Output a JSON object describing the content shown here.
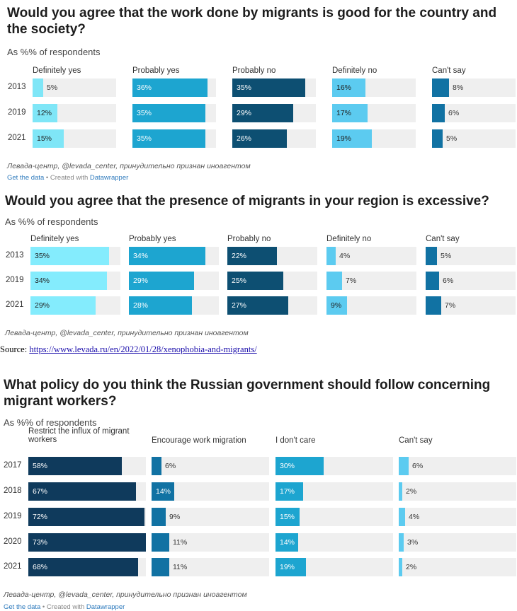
{
  "source": {
    "label": "Source:",
    "url": "https://www.levada.ru/en/2022/01/28/xenophobia-and-migrants/"
  },
  "chart_data": [
    {
      "type": "bar",
      "title": "Would you agree that the work done by migrants is good for the country and the society?",
      "subtitle": "As %% of respondents",
      "categories": [
        "2013",
        "2019",
        "2021"
      ],
      "series": [
        {
          "name": "Definitely yes",
          "values": [
            5,
            12,
            15
          ],
          "color": "#7fe6f7"
        },
        {
          "name": "Probably yes",
          "values": [
            36,
            35,
            35
          ],
          "color": "#1da5d0"
        },
        {
          "name": "Probably no",
          "values": [
            35,
            29,
            26
          ],
          "color": "#0d4f72"
        },
        {
          "name": "Definitely no",
          "values": [
            16,
            17,
            19
          ],
          "color": "#5ccbf0"
        },
        {
          "name": "Can't say",
          "values": [
            8,
            6,
            5
          ],
          "color": "#1172a3"
        }
      ],
      "ylim": [
        0,
        40
      ],
      "note": "Левада-центр, @levada_center, принудительно признан иноагентом",
      "get_data": "Get the data",
      "created_with": " • Created with ",
      "datawrapper": "Datawrapper"
    },
    {
      "type": "bar",
      "title": "Would you agree that the presence of migrants in your region is excessive?",
      "subtitle": "As %% of respondents",
      "categories": [
        "2013",
        "2019",
        "2021"
      ],
      "series": [
        {
          "name": "Definitely yes",
          "values": [
            35,
            34,
            29
          ],
          "color": "#84ecfd"
        },
        {
          "name": "Probably yes",
          "values": [
            34,
            29,
            28
          ],
          "color": "#1da5d0"
        },
        {
          "name": "Probably no",
          "values": [
            22,
            25,
            27
          ],
          "color": "#0d4f72"
        },
        {
          "name": "Definitely no",
          "values": [
            4,
            7,
            9
          ],
          "color": "#5ccbf0"
        },
        {
          "name": "Can't say",
          "values": [
            5,
            6,
            7
          ],
          "color": "#1172a3"
        }
      ],
      "ylim": [
        0,
        40
      ],
      "note": "Левада-центр, @levada_center, принудительно признан иноагентом"
    },
    {
      "type": "bar",
      "title": "What policy do you think the Russian government should follow concerning migrant workers?",
      "subtitle": "As %% of respondents",
      "categories": [
        "2017",
        "2018",
        "2019",
        "2020",
        "2021"
      ],
      "series": [
        {
          "name": "Restrict the influx of migrant workers",
          "values": [
            58,
            67,
            72,
            73,
            68
          ],
          "color": "#0f3a5c"
        },
        {
          "name": "Encourage work migration",
          "values": [
            6,
            14,
            9,
            11,
            11
          ],
          "color": "#1172a3"
        },
        {
          "name": "I don't care",
          "values": [
            30,
            17,
            15,
            14,
            19
          ],
          "color": "#1da5d0"
        },
        {
          "name": "Can't say",
          "values": [
            6,
            2,
            4,
            3,
            2
          ],
          "color": "#5ccbf0"
        }
      ],
      "ylim": [
        0,
        73
      ],
      "note": "Левада-центр, @levada_center, принудительно признан иноагентом",
      "get_data": "Get the data",
      "created_with": " • Created with ",
      "datawrapper": "Datawrapper"
    }
  ]
}
